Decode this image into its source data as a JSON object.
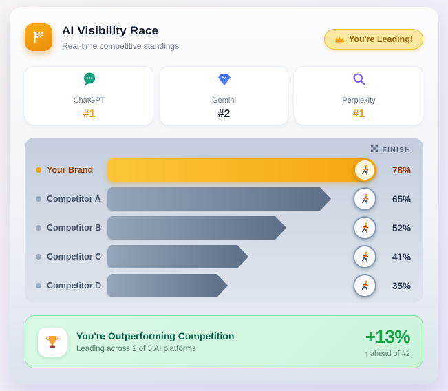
{
  "header": {
    "title": "AI Visibility Race",
    "subtitle": "Real-time competitive standings",
    "badge_label": "You're Leading!",
    "icons": {
      "flag": "checkered-flag-icon",
      "crown": "crown-icon"
    }
  },
  "platforms": [
    {
      "name": "ChatGPT",
      "rank": "#1",
      "rank_color": "#f59e0b",
      "icon": "chat-bubble-icon",
      "icon_color": "#159f7d"
    },
    {
      "name": "Gemini",
      "rank": "#2",
      "rank_color": "#1f2937",
      "icon": "gem-icon",
      "icon_color": "#4a7bf0"
    },
    {
      "name": "Perplexity",
      "rank": "#1",
      "rank_color": "#f59e0b",
      "icon": "magnifier-icon",
      "icon_color": "#7c5cf6"
    }
  ],
  "race": {
    "finish_label": "FINISH",
    "finish_icon": "checkered-flag-icon",
    "runner_icon": "runner-icon",
    "rows": [
      {
        "label": "Your Brand",
        "value": 78,
        "display": "78%",
        "highlight": true,
        "dot_color": "#f59e0b"
      },
      {
        "label": "Competitor A",
        "value": 65,
        "display": "65%",
        "highlight": false,
        "dot_color": "#9aa8bb"
      },
      {
        "label": "Competitor B",
        "value": 52,
        "display": "52%",
        "highlight": false,
        "dot_color": "#9aa8bb"
      },
      {
        "label": "Competitor C",
        "value": 41,
        "display": "41%",
        "highlight": false,
        "dot_color": "#9aa8bb"
      },
      {
        "label": "Competitor D",
        "value": 35,
        "display": "35%",
        "highlight": false,
        "dot_color": "#9aa8bb"
      }
    ]
  },
  "summary": {
    "trophy_icon": "trophy-icon",
    "title": "You're Outperforming Competition",
    "subtitle": "Leading across 2 of 3 AI platforms",
    "delta": "+13%",
    "delta_note": "↑ ahead of #2"
  },
  "colors": {
    "accent_orange": "#f59e0b",
    "brand_bar_gradient": [
      "#fcc63a",
      "#f5a50f"
    ],
    "competitor_bar_gradient": [
      "#97a5ba",
      "#5d6e85"
    ],
    "success_green": "#16a34a",
    "panel_bg": "#cdd6e3",
    "badge_bg": "#fbe9a0"
  },
  "chart_data": {
    "type": "bar",
    "orientation": "horizontal",
    "title": "AI Visibility Race",
    "categories": [
      "Your Brand",
      "Competitor A",
      "Competitor B",
      "Competitor C",
      "Competitor D"
    ],
    "values": [
      78,
      65,
      52,
      41,
      35
    ],
    "value_labels": [
      "78%",
      "65%",
      "52%",
      "41%",
      "35%"
    ],
    "xlim": [
      0,
      100
    ],
    "highlight_category": "Your Brand",
    "annotations": [
      "FINISH"
    ],
    "legend": "none",
    "grid": false
  }
}
